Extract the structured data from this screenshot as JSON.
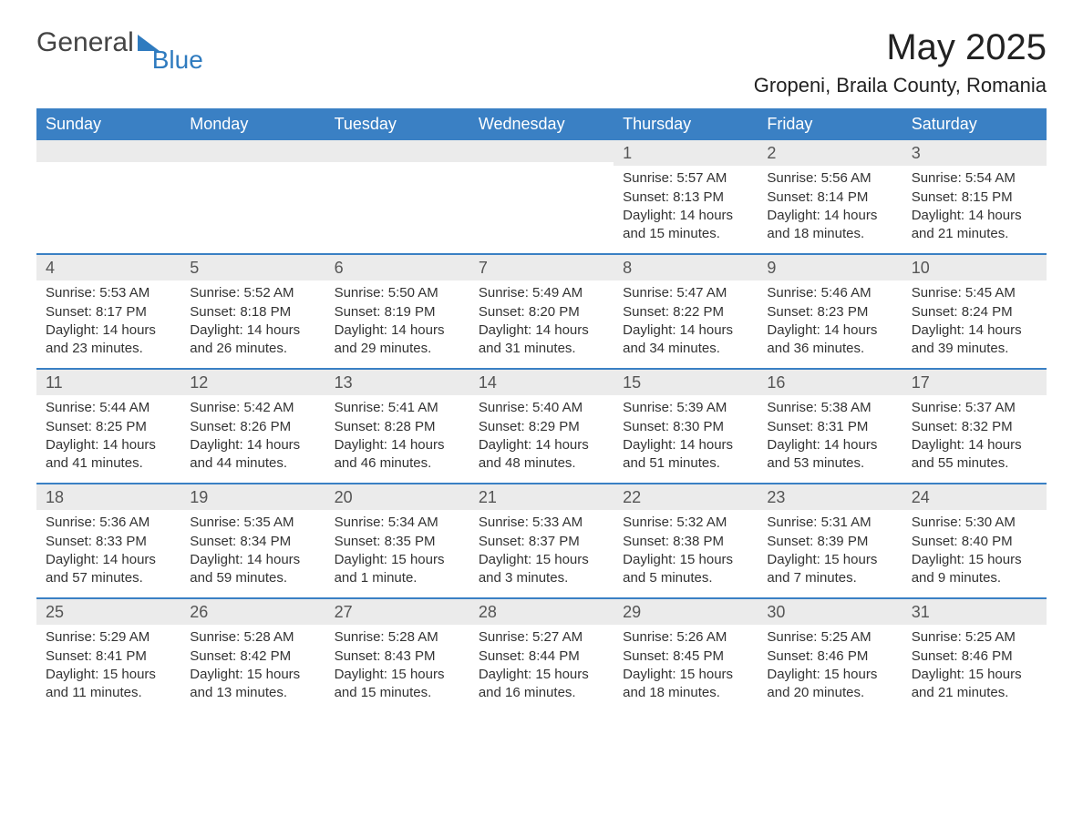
{
  "brand": {
    "word1": "General",
    "word2": "Blue",
    "icon": "triangle-icon"
  },
  "title": "May 2025",
  "location": "Gropeni, Braila County, Romania",
  "colors": {
    "header_bg": "#3a80c4",
    "header_text": "#ffffff",
    "row_divider": "#3a80c4",
    "daynum_bg": "#ebebeb",
    "daynum_text": "#555555",
    "body_text": "#333333",
    "brand_accent": "#2f7bbf",
    "page_bg": "#ffffff"
  },
  "weekdays": [
    "Sunday",
    "Monday",
    "Tuesday",
    "Wednesday",
    "Thursday",
    "Friday",
    "Saturday"
  ],
  "weeks": [
    [
      null,
      null,
      null,
      null,
      {
        "n": "1",
        "sunrise": "Sunrise: 5:57 AM",
        "sunset": "Sunset: 8:13 PM",
        "daylight": "Daylight: 14 hours and 15 minutes."
      },
      {
        "n": "2",
        "sunrise": "Sunrise: 5:56 AM",
        "sunset": "Sunset: 8:14 PM",
        "daylight": "Daylight: 14 hours and 18 minutes."
      },
      {
        "n": "3",
        "sunrise": "Sunrise: 5:54 AM",
        "sunset": "Sunset: 8:15 PM",
        "daylight": "Daylight: 14 hours and 21 minutes."
      }
    ],
    [
      {
        "n": "4",
        "sunrise": "Sunrise: 5:53 AM",
        "sunset": "Sunset: 8:17 PM",
        "daylight": "Daylight: 14 hours and 23 minutes."
      },
      {
        "n": "5",
        "sunrise": "Sunrise: 5:52 AM",
        "sunset": "Sunset: 8:18 PM",
        "daylight": "Daylight: 14 hours and 26 minutes."
      },
      {
        "n": "6",
        "sunrise": "Sunrise: 5:50 AM",
        "sunset": "Sunset: 8:19 PM",
        "daylight": "Daylight: 14 hours and 29 minutes."
      },
      {
        "n": "7",
        "sunrise": "Sunrise: 5:49 AM",
        "sunset": "Sunset: 8:20 PM",
        "daylight": "Daylight: 14 hours and 31 minutes."
      },
      {
        "n": "8",
        "sunrise": "Sunrise: 5:47 AM",
        "sunset": "Sunset: 8:22 PM",
        "daylight": "Daylight: 14 hours and 34 minutes."
      },
      {
        "n": "9",
        "sunrise": "Sunrise: 5:46 AM",
        "sunset": "Sunset: 8:23 PM",
        "daylight": "Daylight: 14 hours and 36 minutes."
      },
      {
        "n": "10",
        "sunrise": "Sunrise: 5:45 AM",
        "sunset": "Sunset: 8:24 PM",
        "daylight": "Daylight: 14 hours and 39 minutes."
      }
    ],
    [
      {
        "n": "11",
        "sunrise": "Sunrise: 5:44 AM",
        "sunset": "Sunset: 8:25 PM",
        "daylight": "Daylight: 14 hours and 41 minutes."
      },
      {
        "n": "12",
        "sunrise": "Sunrise: 5:42 AM",
        "sunset": "Sunset: 8:26 PM",
        "daylight": "Daylight: 14 hours and 44 minutes."
      },
      {
        "n": "13",
        "sunrise": "Sunrise: 5:41 AM",
        "sunset": "Sunset: 8:28 PM",
        "daylight": "Daylight: 14 hours and 46 minutes."
      },
      {
        "n": "14",
        "sunrise": "Sunrise: 5:40 AM",
        "sunset": "Sunset: 8:29 PM",
        "daylight": "Daylight: 14 hours and 48 minutes."
      },
      {
        "n": "15",
        "sunrise": "Sunrise: 5:39 AM",
        "sunset": "Sunset: 8:30 PM",
        "daylight": "Daylight: 14 hours and 51 minutes."
      },
      {
        "n": "16",
        "sunrise": "Sunrise: 5:38 AM",
        "sunset": "Sunset: 8:31 PM",
        "daylight": "Daylight: 14 hours and 53 minutes."
      },
      {
        "n": "17",
        "sunrise": "Sunrise: 5:37 AM",
        "sunset": "Sunset: 8:32 PM",
        "daylight": "Daylight: 14 hours and 55 minutes."
      }
    ],
    [
      {
        "n": "18",
        "sunrise": "Sunrise: 5:36 AM",
        "sunset": "Sunset: 8:33 PM",
        "daylight": "Daylight: 14 hours and 57 minutes."
      },
      {
        "n": "19",
        "sunrise": "Sunrise: 5:35 AM",
        "sunset": "Sunset: 8:34 PM",
        "daylight": "Daylight: 14 hours and 59 minutes."
      },
      {
        "n": "20",
        "sunrise": "Sunrise: 5:34 AM",
        "sunset": "Sunset: 8:35 PM",
        "daylight": "Daylight: 15 hours and 1 minute."
      },
      {
        "n": "21",
        "sunrise": "Sunrise: 5:33 AM",
        "sunset": "Sunset: 8:37 PM",
        "daylight": "Daylight: 15 hours and 3 minutes."
      },
      {
        "n": "22",
        "sunrise": "Sunrise: 5:32 AM",
        "sunset": "Sunset: 8:38 PM",
        "daylight": "Daylight: 15 hours and 5 minutes."
      },
      {
        "n": "23",
        "sunrise": "Sunrise: 5:31 AM",
        "sunset": "Sunset: 8:39 PM",
        "daylight": "Daylight: 15 hours and 7 minutes."
      },
      {
        "n": "24",
        "sunrise": "Sunrise: 5:30 AM",
        "sunset": "Sunset: 8:40 PM",
        "daylight": "Daylight: 15 hours and 9 minutes."
      }
    ],
    [
      {
        "n": "25",
        "sunrise": "Sunrise: 5:29 AM",
        "sunset": "Sunset: 8:41 PM",
        "daylight": "Daylight: 15 hours and 11 minutes."
      },
      {
        "n": "26",
        "sunrise": "Sunrise: 5:28 AM",
        "sunset": "Sunset: 8:42 PM",
        "daylight": "Daylight: 15 hours and 13 minutes."
      },
      {
        "n": "27",
        "sunrise": "Sunrise: 5:28 AM",
        "sunset": "Sunset: 8:43 PM",
        "daylight": "Daylight: 15 hours and 15 minutes."
      },
      {
        "n": "28",
        "sunrise": "Sunrise: 5:27 AM",
        "sunset": "Sunset: 8:44 PM",
        "daylight": "Daylight: 15 hours and 16 minutes."
      },
      {
        "n": "29",
        "sunrise": "Sunrise: 5:26 AM",
        "sunset": "Sunset: 8:45 PM",
        "daylight": "Daylight: 15 hours and 18 minutes."
      },
      {
        "n": "30",
        "sunrise": "Sunrise: 5:25 AM",
        "sunset": "Sunset: 8:46 PM",
        "daylight": "Daylight: 15 hours and 20 minutes."
      },
      {
        "n": "31",
        "sunrise": "Sunrise: 5:25 AM",
        "sunset": "Sunset: 8:46 PM",
        "daylight": "Daylight: 15 hours and 21 minutes."
      }
    ]
  ]
}
